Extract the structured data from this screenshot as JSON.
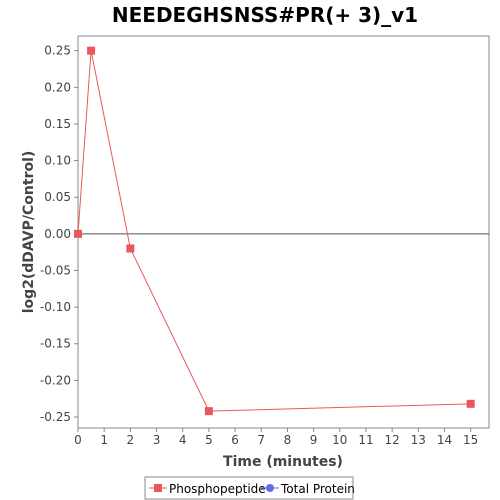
{
  "chart_data": {
    "type": "line",
    "title": "NEEDEGHSNSS#PR(+ 3)_v1",
    "xlabel": "Time (minutes)",
    "ylabel": "log2(dDAVP/Control)",
    "xlim": [
      0,
      15.7
    ],
    "ylim": [
      -0.265,
      0.27
    ],
    "xticks": [
      0,
      1,
      2,
      3,
      4,
      5,
      6,
      7,
      8,
      9,
      10,
      11,
      12,
      13,
      14,
      15
    ],
    "yticks": [
      0.25,
      0.2,
      0.15,
      0.1,
      0.05,
      0.0,
      -0.05,
      -0.1,
      -0.15,
      -0.2,
      -0.25
    ],
    "ytick_labels": [
      "0.25",
      "0.20",
      "0.15",
      "0.10",
      "0.05",
      "0.00",
      "-0.05",
      "-0.10",
      "-0.15",
      "-0.20",
      "-0.25"
    ],
    "zero_line": true,
    "grid": false,
    "legend_position": "bottom",
    "series": [
      {
        "name": "Phosphopeptide",
        "color": "#e8585a",
        "marker": "square",
        "x": [
          0,
          0.5,
          2,
          5,
          15
        ],
        "y": [
          0.0,
          0.25,
          -0.02,
          -0.242,
          -0.232
        ]
      },
      {
        "name": "Total Protein",
        "color": "#5a6ee8",
        "marker": "circle",
        "x": [],
        "y": []
      }
    ]
  }
}
